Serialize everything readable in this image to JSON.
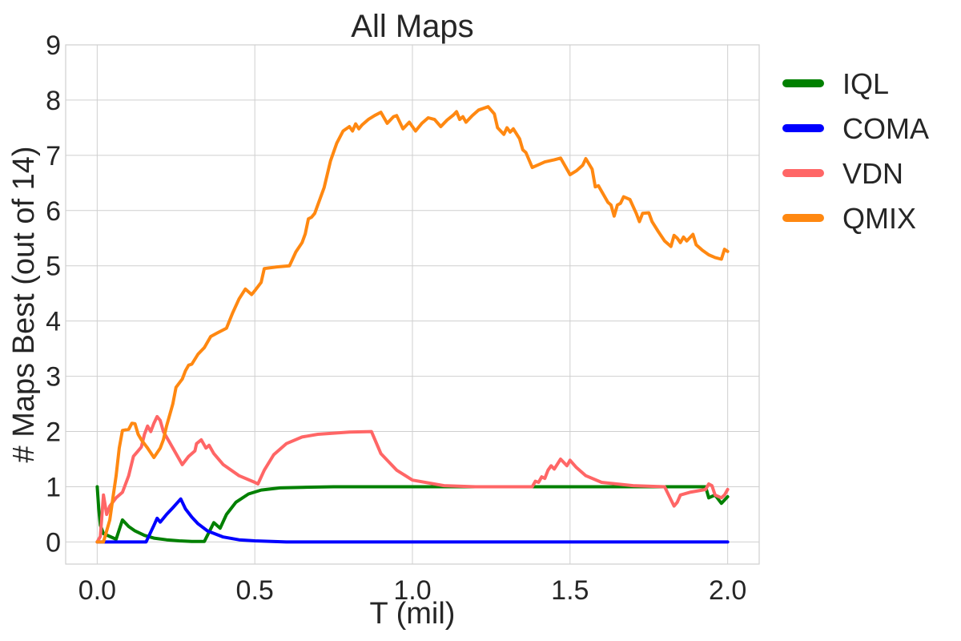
{
  "chart_data": {
    "type": "line",
    "title": "All Maps",
    "xlabel": "T (mil)",
    "ylabel": "# Maps Best (out of 14)",
    "xlim": [
      -0.1,
      2.1
    ],
    "ylim": [
      -0.4,
      9
    ],
    "xticks": [
      0.0,
      0.5,
      1.0,
      1.5,
      2.0
    ],
    "xtick_labels": [
      "0.0",
      "0.5",
      "1.0",
      "1.5",
      "2.0"
    ],
    "yticks": [
      0,
      1,
      2,
      3,
      4,
      5,
      6,
      7,
      8,
      9
    ],
    "ytick_labels": [
      "0",
      "1",
      "2",
      "3",
      "4",
      "5",
      "6",
      "7",
      "8",
      "9"
    ],
    "grid": true,
    "legend_position": "outside-right",
    "series": [
      {
        "name": "IQL",
        "color": "#008000",
        "points": [
          [
            0.0,
            1.0
          ],
          [
            0.005,
            0.6
          ],
          [
            0.01,
            0.3
          ],
          [
            0.02,
            0.15
          ],
          [
            0.04,
            0.1
          ],
          [
            0.06,
            0.05
          ],
          [
            0.08,
            0.4
          ],
          [
            0.1,
            0.28
          ],
          [
            0.12,
            0.2
          ],
          [
            0.15,
            0.12
          ],
          [
            0.18,
            0.07
          ],
          [
            0.22,
            0.04
          ],
          [
            0.26,
            0.02
          ],
          [
            0.3,
            0.01
          ],
          [
            0.34,
            0.01
          ],
          [
            0.37,
            0.35
          ],
          [
            0.39,
            0.25
          ],
          [
            0.41,
            0.5
          ],
          [
            0.44,
            0.72
          ],
          [
            0.48,
            0.87
          ],
          [
            0.52,
            0.94
          ],
          [
            0.58,
            0.98
          ],
          [
            0.65,
            0.99
          ],
          [
            0.75,
            1.0
          ],
          [
            1.0,
            1.0
          ],
          [
            1.3,
            1.0
          ],
          [
            1.6,
            1.0
          ],
          [
            1.93,
            1.0
          ],
          [
            1.94,
            0.8
          ],
          [
            1.96,
            0.85
          ],
          [
            1.98,
            0.7
          ],
          [
            2.0,
            0.82
          ]
        ]
      },
      {
        "name": "COMA",
        "color": "#0000ff",
        "points": [
          [
            0.0,
            0.0
          ],
          [
            0.155,
            0.0
          ],
          [
            0.18,
            0.3
          ],
          [
            0.19,
            0.43
          ],
          [
            0.2,
            0.36
          ],
          [
            0.22,
            0.5
          ],
          [
            0.24,
            0.62
          ],
          [
            0.265,
            0.78
          ],
          [
            0.28,
            0.6
          ],
          [
            0.3,
            0.45
          ],
          [
            0.32,
            0.33
          ],
          [
            0.35,
            0.2
          ],
          [
            0.4,
            0.09
          ],
          [
            0.45,
            0.04
          ],
          [
            0.5,
            0.02
          ],
          [
            0.6,
            0.0
          ],
          [
            1.0,
            0.0
          ],
          [
            1.5,
            0.0
          ],
          [
            2.0,
            0.0
          ]
        ]
      },
      {
        "name": "VDN",
        "color": "#ff6666",
        "points": [
          [
            0.0,
            0.0
          ],
          [
            0.01,
            0.1
          ],
          [
            0.02,
            0.85
          ],
          [
            0.03,
            0.5
          ],
          [
            0.04,
            0.65
          ],
          [
            0.06,
            0.8
          ],
          [
            0.08,
            0.9
          ],
          [
            0.1,
            1.2
          ],
          [
            0.115,
            1.55
          ],
          [
            0.13,
            1.65
          ],
          [
            0.14,
            1.72
          ],
          [
            0.15,
            1.95
          ],
          [
            0.16,
            2.1
          ],
          [
            0.17,
            2.0
          ],
          [
            0.18,
            2.15
          ],
          [
            0.19,
            2.27
          ],
          [
            0.2,
            2.2
          ],
          [
            0.21,
            2.0
          ],
          [
            0.23,
            1.8
          ],
          [
            0.25,
            1.6
          ],
          [
            0.27,
            1.4
          ],
          [
            0.29,
            1.55
          ],
          [
            0.31,
            1.65
          ],
          [
            0.315,
            1.78
          ],
          [
            0.33,
            1.85
          ],
          [
            0.345,
            1.7
          ],
          [
            0.355,
            1.75
          ],
          [
            0.37,
            1.6
          ],
          [
            0.4,
            1.4
          ],
          [
            0.45,
            1.2
          ],
          [
            0.5,
            1.08
          ],
          [
            0.51,
            1.05
          ],
          [
            0.53,
            1.3
          ],
          [
            0.56,
            1.58
          ],
          [
            0.6,
            1.78
          ],
          [
            0.65,
            1.9
          ],
          [
            0.7,
            1.95
          ],
          [
            0.8,
            1.99
          ],
          [
            0.87,
            2.0
          ],
          [
            0.9,
            1.6
          ],
          [
            0.95,
            1.3
          ],
          [
            1.0,
            1.12
          ],
          [
            1.1,
            1.02
          ],
          [
            1.2,
            1.0
          ],
          [
            1.38,
            1.0
          ],
          [
            1.39,
            1.1
          ],
          [
            1.4,
            1.08
          ],
          [
            1.41,
            1.18
          ],
          [
            1.42,
            1.15
          ],
          [
            1.43,
            1.3
          ],
          [
            1.44,
            1.38
          ],
          [
            1.45,
            1.32
          ],
          [
            1.47,
            1.5
          ],
          [
            1.49,
            1.38
          ],
          [
            1.5,
            1.48
          ],
          [
            1.52,
            1.35
          ],
          [
            1.55,
            1.2
          ],
          [
            1.6,
            1.08
          ],
          [
            1.7,
            1.02
          ],
          [
            1.8,
            1.0
          ],
          [
            1.83,
            0.65
          ],
          [
            1.84,
            0.72
          ],
          [
            1.85,
            0.85
          ],
          [
            1.88,
            0.9
          ],
          [
            1.9,
            0.92
          ],
          [
            1.93,
            0.95
          ],
          [
            1.94,
            1.05
          ],
          [
            1.95,
            1.02
          ],
          [
            1.96,
            0.85
          ],
          [
            1.98,
            0.8
          ],
          [
            1.99,
            0.85
          ],
          [
            2.0,
            0.95
          ]
        ]
      },
      {
        "name": "QMIX",
        "color": "#ff8811",
        "points": [
          [
            0.0,
            0.0
          ],
          [
            0.02,
            0.0
          ],
          [
            0.04,
            0.4
          ],
          [
            0.05,
            0.8
          ],
          [
            0.06,
            1.2
          ],
          [
            0.07,
            1.7
          ],
          [
            0.08,
            2.02
          ],
          [
            0.1,
            2.04
          ],
          [
            0.11,
            2.15
          ],
          [
            0.12,
            2.14
          ],
          [
            0.13,
            1.95
          ],
          [
            0.14,
            1.85
          ],
          [
            0.16,
            1.7
          ],
          [
            0.18,
            1.53
          ],
          [
            0.2,
            1.7
          ],
          [
            0.21,
            1.85
          ],
          [
            0.22,
            2.1
          ],
          [
            0.24,
            2.5
          ],
          [
            0.25,
            2.8
          ],
          [
            0.27,
            2.95
          ],
          [
            0.28,
            3.1
          ],
          [
            0.29,
            3.2
          ],
          [
            0.3,
            3.22
          ],
          [
            0.32,
            3.4
          ],
          [
            0.34,
            3.52
          ],
          [
            0.36,
            3.72
          ],
          [
            0.38,
            3.78
          ],
          [
            0.41,
            3.87
          ],
          [
            0.43,
            4.15
          ],
          [
            0.45,
            4.4
          ],
          [
            0.47,
            4.58
          ],
          [
            0.49,
            4.48
          ],
          [
            0.5,
            4.55
          ],
          [
            0.52,
            4.7
          ],
          [
            0.53,
            4.95
          ],
          [
            0.57,
            4.98
          ],
          [
            0.61,
            5.0
          ],
          [
            0.63,
            5.25
          ],
          [
            0.65,
            5.42
          ],
          [
            0.66,
            5.58
          ],
          [
            0.67,
            5.85
          ],
          [
            0.68,
            5.88
          ],
          [
            0.69,
            5.95
          ],
          [
            0.72,
            6.42
          ],
          [
            0.74,
            6.9
          ],
          [
            0.76,
            7.22
          ],
          [
            0.78,
            7.44
          ],
          [
            0.8,
            7.52
          ],
          [
            0.81,
            7.44
          ],
          [
            0.82,
            7.57
          ],
          [
            0.83,
            7.48
          ],
          [
            0.84,
            7.55
          ],
          [
            0.86,
            7.65
          ],
          [
            0.88,
            7.72
          ],
          [
            0.9,
            7.78
          ],
          [
            0.92,
            7.58
          ],
          [
            0.94,
            7.7
          ],
          [
            0.95,
            7.72
          ],
          [
            0.97,
            7.48
          ],
          [
            0.99,
            7.6
          ],
          [
            1.01,
            7.44
          ],
          [
            1.03,
            7.58
          ],
          [
            1.05,
            7.68
          ],
          [
            1.07,
            7.65
          ],
          [
            1.09,
            7.52
          ],
          [
            1.11,
            7.64
          ],
          [
            1.13,
            7.73
          ],
          [
            1.14,
            7.79
          ],
          [
            1.15,
            7.65
          ],
          [
            1.16,
            7.7
          ],
          [
            1.17,
            7.6
          ],
          [
            1.19,
            7.72
          ],
          [
            1.21,
            7.82
          ],
          [
            1.24,
            7.88
          ],
          [
            1.26,
            7.75
          ],
          [
            1.27,
            7.5
          ],
          [
            1.29,
            7.38
          ],
          [
            1.3,
            7.5
          ],
          [
            1.31,
            7.42
          ],
          [
            1.32,
            7.48
          ],
          [
            1.34,
            7.3
          ],
          [
            1.35,
            7.1
          ],
          [
            1.36,
            7.05
          ],
          [
            1.38,
            6.78
          ],
          [
            1.4,
            6.83
          ],
          [
            1.42,
            6.88
          ],
          [
            1.45,
            6.92
          ],
          [
            1.47,
            6.95
          ],
          [
            1.5,
            6.65
          ],
          [
            1.52,
            6.72
          ],
          [
            1.54,
            6.82
          ],
          [
            1.55,
            6.94
          ],
          [
            1.57,
            6.75
          ],
          [
            1.58,
            6.43
          ],
          [
            1.59,
            6.45
          ],
          [
            1.6,
            6.35
          ],
          [
            1.62,
            6.15
          ],
          [
            1.63,
            6.1
          ],
          [
            1.64,
            5.9
          ],
          [
            1.65,
            6.1
          ],
          [
            1.66,
            6.13
          ],
          [
            1.67,
            6.25
          ],
          [
            1.69,
            6.2
          ],
          [
            1.71,
            5.95
          ],
          [
            1.72,
            5.8
          ],
          [
            1.73,
            5.95
          ],
          [
            1.75,
            5.96
          ],
          [
            1.76,
            5.8
          ],
          [
            1.78,
            5.62
          ],
          [
            1.8,
            5.45
          ],
          [
            1.82,
            5.35
          ],
          [
            1.83,
            5.55
          ],
          [
            1.84,
            5.5
          ],
          [
            1.85,
            5.42
          ],
          [
            1.86,
            5.52
          ],
          [
            1.87,
            5.45
          ],
          [
            1.89,
            5.57
          ],
          [
            1.9,
            5.38
          ],
          [
            1.92,
            5.28
          ],
          [
            1.94,
            5.2
          ],
          [
            1.96,
            5.15
          ],
          [
            1.98,
            5.12
          ],
          [
            1.99,
            5.3
          ],
          [
            2.0,
            5.26
          ]
        ]
      }
    ]
  }
}
